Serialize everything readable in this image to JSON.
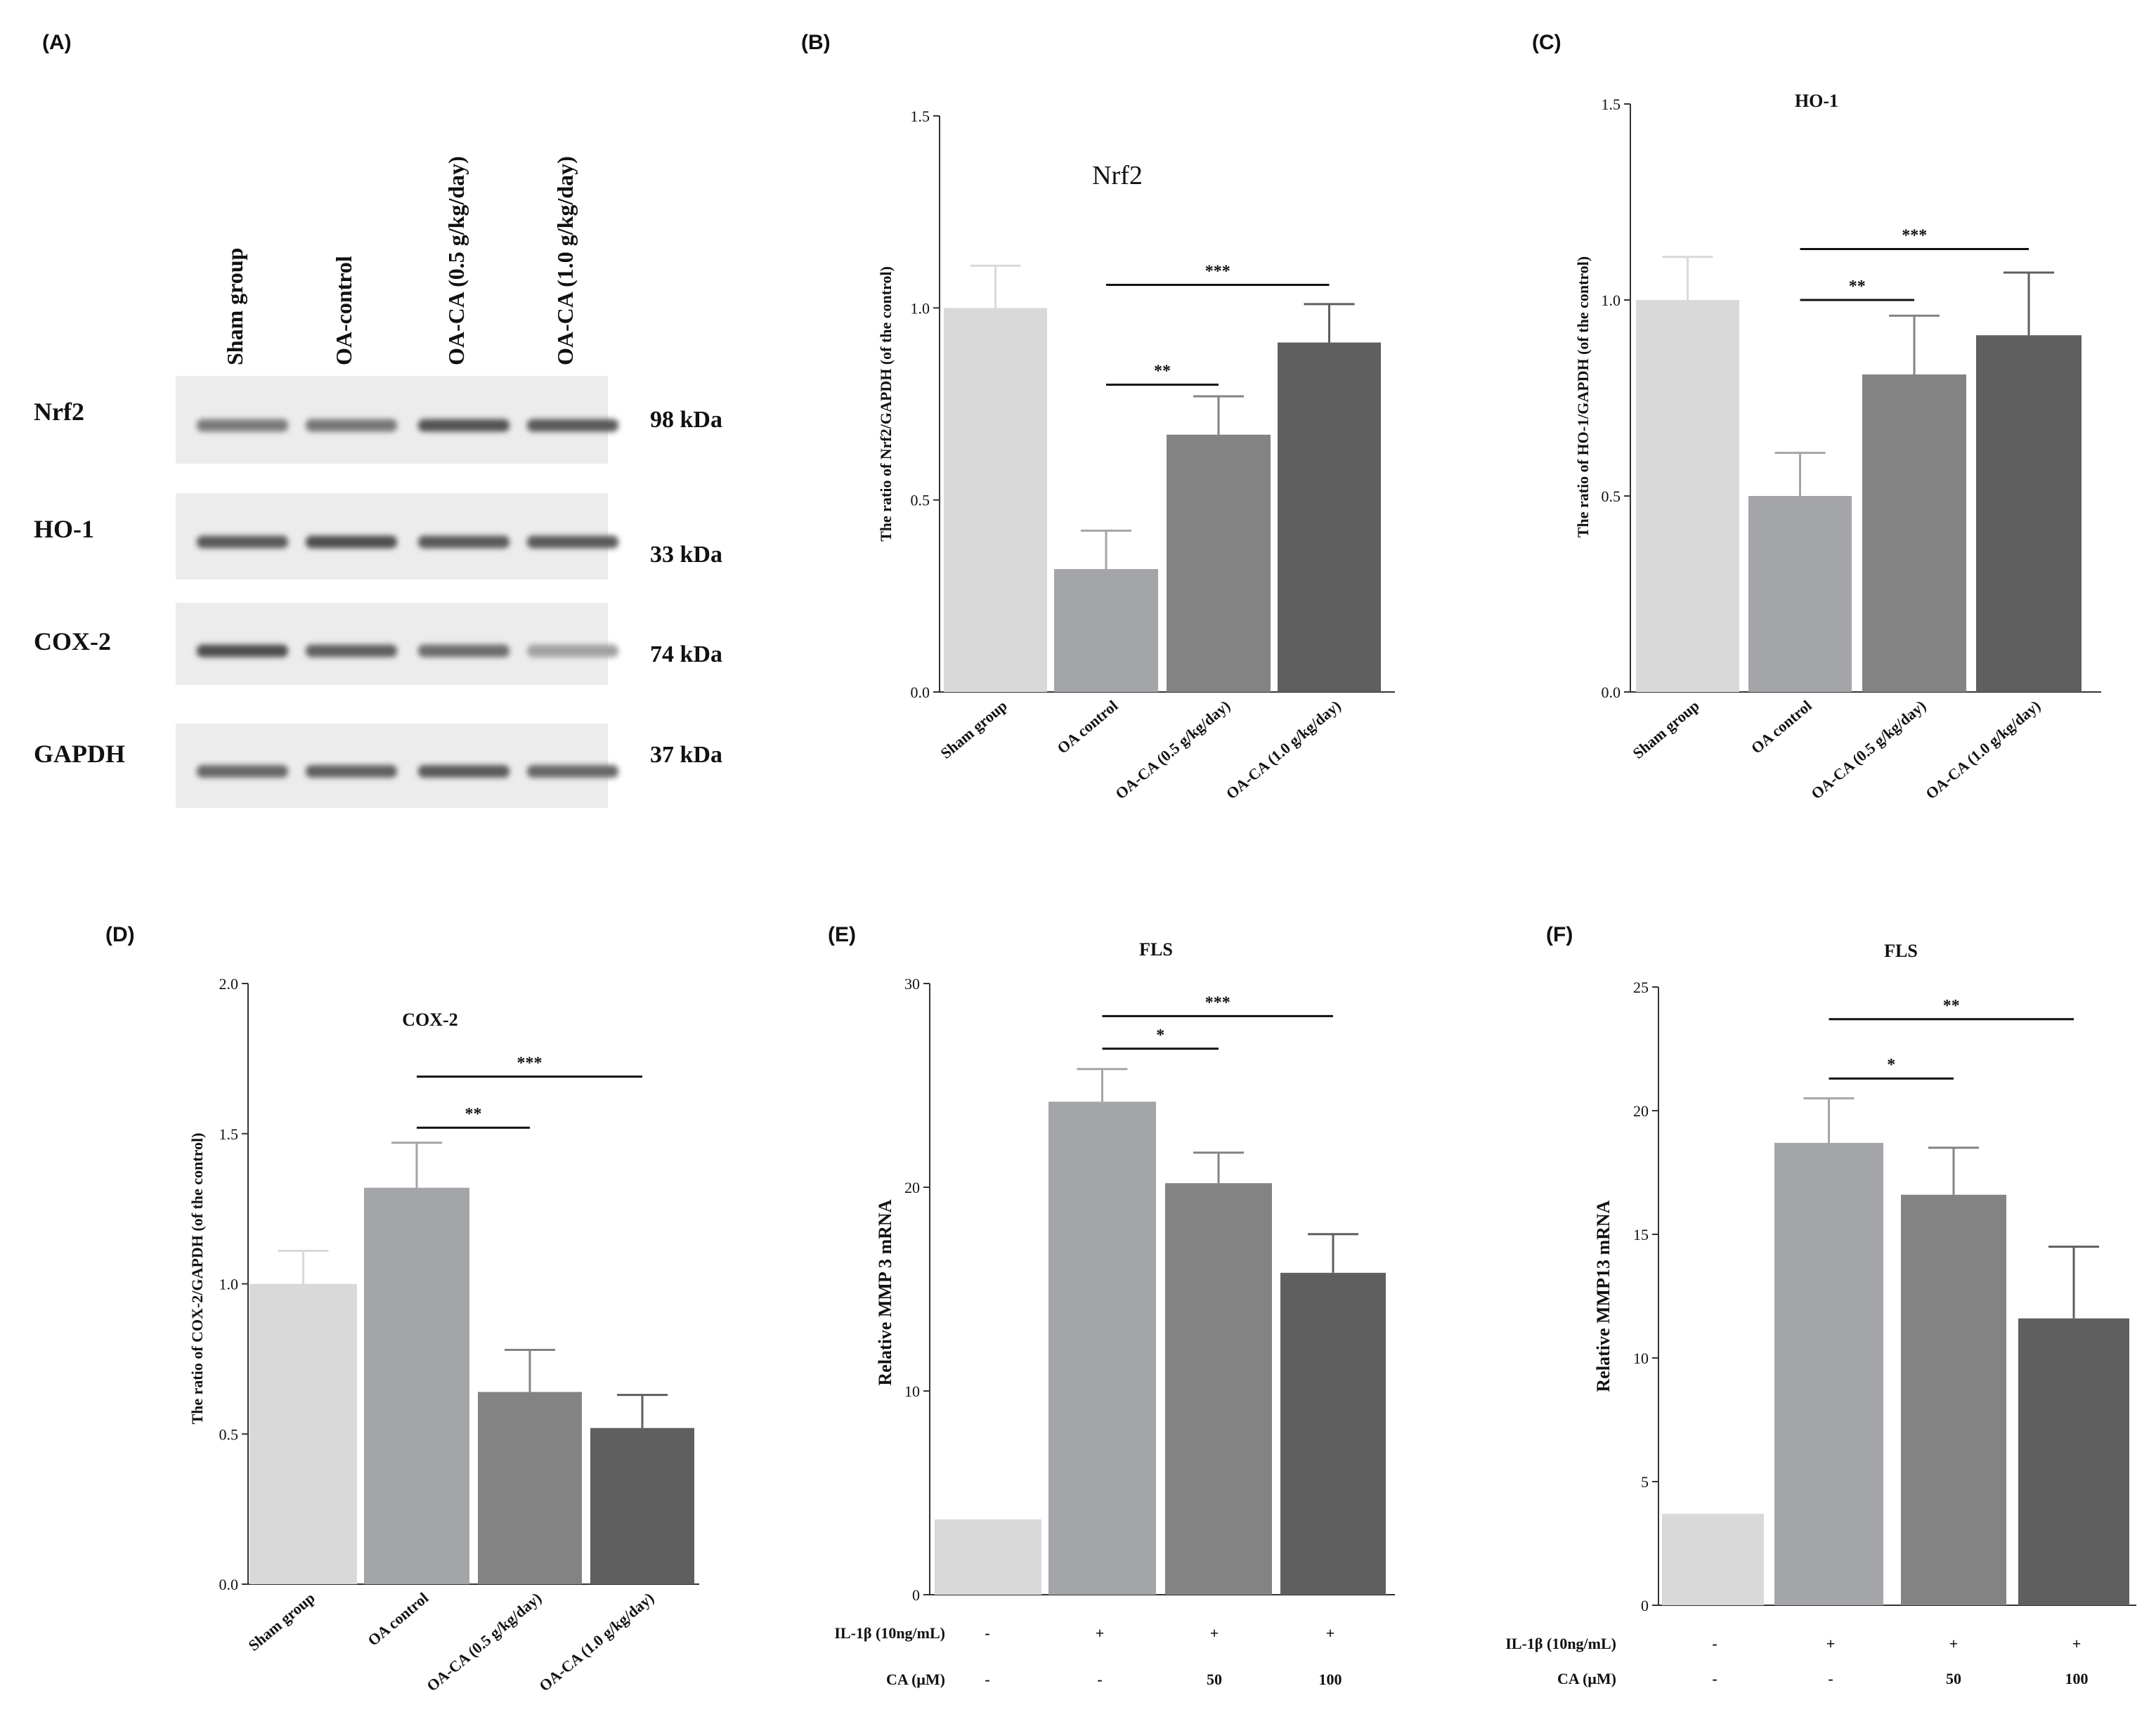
{
  "blot": {
    "panel_label": "(A)",
    "lanes": [
      "Sham group",
      "OA-control",
      "OA-CA (0.5 g/kg/day)",
      "OA-CA (1.0 g/kg/day)"
    ],
    "rows": [
      {
        "protein": "Nrf2",
        "kda": "98 kDa",
        "intensity": [
          0.6,
          0.62,
          0.9,
          0.85
        ]
      },
      {
        "protein": "HO-1",
        "kda": "33 kDa",
        "intensity": [
          0.85,
          0.95,
          0.85,
          0.85
        ]
      },
      {
        "protein": "COX-2",
        "kda": "74 kDa",
        "intensity": [
          0.95,
          0.8,
          0.7,
          0.3
        ]
      },
      {
        "protein": "GAPDH",
        "kda": "37 kDa",
        "intensity": [
          0.75,
          0.8,
          0.85,
          0.75
        ]
      }
    ]
  },
  "colors": [
    "#d9d9d9",
    "#a4a5a9",
    "#838383",
    "#5f5f5f"
  ],
  "chart_data": [
    {
      "id": "B",
      "type": "bar",
      "panel_label": "(B)",
      "title": "Nrf2",
      "ylabel": "The ratio of Nrf2/GAPDH (of the control)",
      "categories": [
        "Sham group",
        "OA control",
        "OA-CA (0.5 g/kg/day)",
        "OA-CA (1.0 g/kg/day)"
      ],
      "values": [
        1.0,
        0.32,
        0.67,
        0.91
      ],
      "errors": [
        0.11,
        0.1,
        0.1,
        0.1
      ],
      "ylim": [
        0,
        1.5
      ],
      "yticks": [
        "0.0",
        "0.5",
        "1.0",
        "1.5"
      ],
      "significance": [
        {
          "from": 1,
          "to": 2,
          "value": 0.8,
          "label": "**"
        },
        {
          "from": 1,
          "to": 3,
          "value": 1.06,
          "label": "***"
        }
      ]
    },
    {
      "id": "C",
      "type": "bar",
      "panel_label": "(C)",
      "title": "HO-1",
      "ylabel": "The ratio of HO-1/GAPDH (of the control)",
      "categories": [
        "Sham group",
        "OA control",
        "OA-CA (0.5 g/kg/day)",
        "OA-CA (1.0 g/kg/day)"
      ],
      "values": [
        1.0,
        0.5,
        0.81,
        0.91
      ],
      "errors": [
        0.11,
        0.11,
        0.15,
        0.16
      ],
      "ylim": [
        0,
        1.5
      ],
      "yticks": [
        "0.0",
        "0.5",
        "1.0",
        "1.5"
      ],
      "significance": [
        {
          "from": 1,
          "to": 2,
          "value": 1.0,
          "label": "**"
        },
        {
          "from": 1,
          "to": 3,
          "value": 1.13,
          "label": "***"
        }
      ]
    },
    {
      "id": "D",
      "type": "bar",
      "panel_label": "(D)",
      "title": "COX-2",
      "ylabel": "The ratio of COX-2/GAPDH (of the control)",
      "categories": [
        "Sham group",
        "OA control",
        "OA-CA (0.5 g/kg/day)",
        "OA-CA (1.0 g/kg/day)"
      ],
      "values": [
        1.0,
        1.32,
        0.64,
        0.52
      ],
      "errors": [
        0.11,
        0.15,
        0.14,
        0.11
      ],
      "ylim": [
        0,
        2.0
      ],
      "yticks": [
        "0.0",
        "0.5",
        "1.0",
        "1.5",
        "2.0"
      ],
      "significance": [
        {
          "from": 1,
          "to": 2,
          "value": 1.52,
          "label": "**"
        },
        {
          "from": 1,
          "to": 3,
          "value": 1.69,
          "label": "***"
        }
      ]
    },
    {
      "id": "E",
      "type": "bar",
      "panel_label": "(E)",
      "title": "FLS",
      "ylabel": "Relative MMP 3 mRNA",
      "values": [
        3.7,
        24.2,
        20.2,
        15.8
      ],
      "errors": [
        0,
        1.6,
        1.5,
        1.9
      ],
      "ylim": [
        0,
        30
      ],
      "yticks": [
        "0",
        "10",
        "20",
        "30"
      ],
      "treatment_rows": [
        {
          "label": "IL-1β (10ng/mL)",
          "marks": [
            "-",
            "+",
            "+",
            "+"
          ]
        },
        {
          "label": "CA (μM)",
          "marks": [
            "-",
            "-",
            "50",
            "100"
          ]
        }
      ],
      "significance": [
        {
          "from": 1,
          "to": 2,
          "value": 26.8,
          "label": "*"
        },
        {
          "from": 1,
          "to": 3,
          "value": 28.4,
          "label": "***"
        }
      ]
    },
    {
      "id": "F",
      "type": "bar",
      "panel_label": "(F)",
      "title": "FLS",
      "ylabel": "Relative MMP13 mRNA",
      "values": [
        3.7,
        18.7,
        16.6,
        11.6
      ],
      "errors": [
        0,
        1.8,
        1.9,
        2.9
      ],
      "ylim": [
        0,
        25
      ],
      "yticks": [
        "0",
        "5",
        "10",
        "15",
        "20",
        "25"
      ],
      "treatment_rows": [
        {
          "label": "IL-1β (10ng/mL)",
          "marks": [
            "-",
            "+",
            "+",
            "+"
          ]
        },
        {
          "label": "CA (μM)",
          "marks": [
            "-",
            "-",
            "50",
            "100"
          ]
        }
      ],
      "significance": [
        {
          "from": 1,
          "to": 2,
          "value": 21.3,
          "label": "*"
        },
        {
          "from": 1,
          "to": 3,
          "value": 23.7,
          "label": "**"
        }
      ]
    }
  ]
}
